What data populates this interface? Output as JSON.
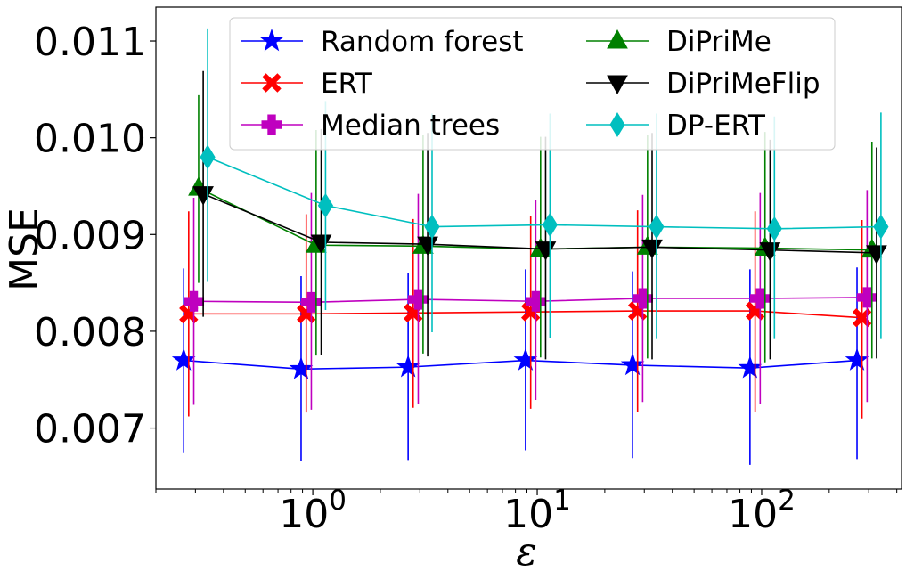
{
  "chart_data": {
    "type": "line",
    "xscale": "log",
    "xlim": [
      0.2,
      420
    ],
    "ylim": [
      0.00637,
      0.01135
    ],
    "xlabel": "ε",
    "ylabel": "MSE",
    "x_ticks": [
      {
        "value": 1,
        "base": "10",
        "exp": "0"
      },
      {
        "value": 10,
        "base": "10",
        "exp": "1"
      },
      {
        "value": 100,
        "base": "10",
        "exp": "2"
      }
    ],
    "y_ticks": [
      {
        "value": 0.007,
        "label": "0.007"
      },
      {
        "value": 0.008,
        "label": "0.008"
      },
      {
        "value": 0.009,
        "label": "0.009"
      },
      {
        "value": 0.01,
        "label": "0.010"
      },
      {
        "value": 0.011,
        "label": "0.011"
      }
    ],
    "legend": {
      "position": "top",
      "columns": 2
    },
    "series": [
      {
        "name": "Random forest",
        "color": "#0000ff",
        "marker": "star",
        "x": [
          0.266,
          0.887,
          2.66,
          8.87,
          26.6,
          88.7,
          266
        ],
        "y": [
          0.0077,
          0.00761,
          0.00763,
          0.0077,
          0.00765,
          0.00762,
          0.0077
        ],
        "err_low": [
          0.00675,
          0.00666,
          0.00667,
          0.00677,
          0.00669,
          0.00662,
          0.00668
        ],
        "err_high": [
          0.00865,
          0.00857,
          0.0086,
          0.00864,
          0.00862,
          0.00864,
          0.00866
        ]
      },
      {
        "name": "ERT",
        "color": "#ff0000",
        "marker": "x",
        "x": [
          0.28,
          0.935,
          2.8,
          9.35,
          28.0,
          93.5,
          280
        ],
        "y": [
          0.00818,
          0.00818,
          0.00819,
          0.0082,
          0.00821,
          0.00821,
          0.00814
        ],
        "err_low": [
          0.00712,
          0.00716,
          0.00721,
          0.0072,
          0.00717,
          0.00717,
          0.0071
        ],
        "err_high": [
          0.00924,
          0.00921,
          0.00916,
          0.00919,
          0.00925,
          0.00924,
          0.00915
        ]
      },
      {
        "name": "Median trees",
        "color": "#bf00bf",
        "marker": "plus",
        "x": [
          0.295,
          0.985,
          2.95,
          9.85,
          29.5,
          98.5,
          295
        ],
        "y": [
          0.00831,
          0.0083,
          0.00833,
          0.00831,
          0.00834,
          0.00834,
          0.00835
        ],
        "err_low": [
          0.00724,
          0.00719,
          0.00725,
          0.00729,
          0.00727,
          0.00725,
          0.00727
        ],
        "err_high": [
          0.00938,
          0.00943,
          0.00942,
          0.00936,
          0.00941,
          0.00943,
          0.00946
        ]
      },
      {
        "name": "DiPriMe",
        "color": "#008000",
        "marker": "triangle-up",
        "x": [
          0.31,
          1.035,
          3.1,
          10.35,
          31.0,
          103.5,
          310
        ],
        "y": [
          0.00948,
          0.00889,
          0.00888,
          0.00885,
          0.00887,
          0.00886,
          0.00884
        ],
        "err_low": [
          0.0085,
          0.00775,
          0.00777,
          0.00773,
          0.00772,
          0.00768,
          0.00772
        ],
        "err_high": [
          0.01044,
          0.01008,
          0.01003,
          0.01001,
          0.01003,
          0.01006,
          0.00996
        ]
      },
      {
        "name": "DiPriMeFlip",
        "color": "#000000",
        "marker": "triangle-down",
        "x": [
          0.325,
          1.09,
          3.25,
          10.9,
          32.5,
          109,
          325
        ],
        "y": [
          0.00942,
          0.00892,
          0.0089,
          0.00885,
          0.00887,
          0.00884,
          0.00881
        ],
        "err_low": [
          0.00815,
          0.00776,
          0.00774,
          0.00771,
          0.00771,
          0.00771,
          0.00772
        ],
        "err_high": [
          0.01069,
          0.01009,
          0.01005,
          0.01001,
          0.01005,
          0.00998,
          0.0099
        ]
      },
      {
        "name": "DP-ERT",
        "color": "#00bfbf",
        "marker": "diamond",
        "x": [
          0.34,
          1.14,
          3.4,
          11.4,
          34.0,
          114,
          340
        ],
        "y": [
          0.0098,
          0.0093,
          0.00908,
          0.0091,
          0.00908,
          0.00906,
          0.00908
        ],
        "err_low": [
          0.00851,
          0.00822,
          0.00799,
          0.00793,
          0.00792,
          0.00792,
          0.00792
        ],
        "err_high": [
          0.01113,
          0.01038,
          0.01025,
          0.01025,
          0.01025,
          0.01022,
          0.01026
        ]
      }
    ]
  }
}
